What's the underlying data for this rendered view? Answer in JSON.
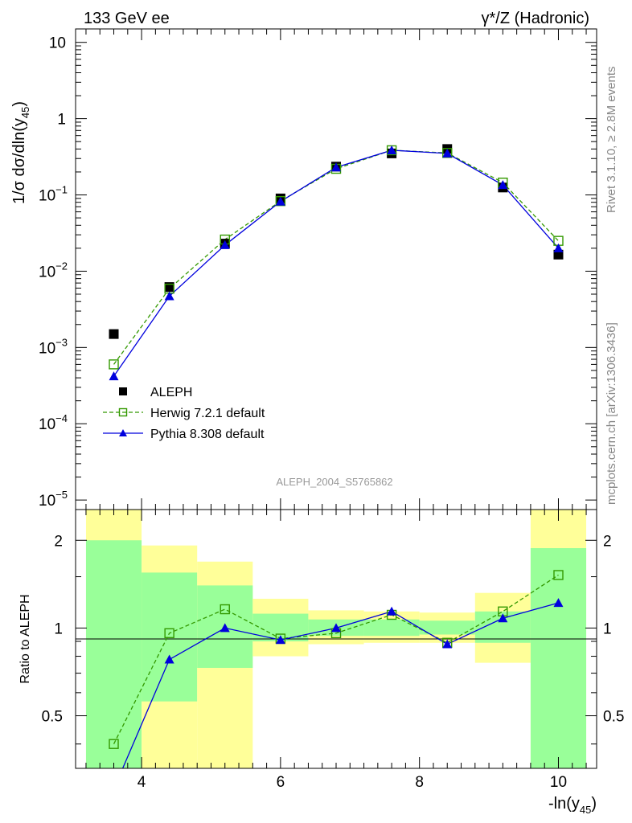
{
  "header": {
    "left": "133 GeV ee",
    "right": "γ*/Z (Hadronic)"
  },
  "side": {
    "rivet": "Rivet 3.1.10, ≥ 2.8M events",
    "mcplots": "mcplots.cern.ch [arXiv:1306.3436]"
  },
  "analysis_label": "ALEPH_2004_S5765862",
  "chart_data": [
    {
      "type": "scatter",
      "title": "133 GeV ee",
      "ylabel": "1/σ dσ/dln(y_45)",
      "xlabel": "-ln(y_45)",
      "yscale": "log",
      "ylim": [
        7.5e-06,
        15
      ],
      "xlim": [
        3.05,
        10.55
      ],
      "x_ticks": [
        "4",
        "6",
        "8",
        "10"
      ],
      "y_ticks": [
        "10⁻⁵",
        "10⁻⁴",
        "10⁻³",
        "10⁻²",
        "10⁻¹",
        "1",
        "10"
      ],
      "legend": [
        "ALEPH",
        "Herwig 7.2.1 default",
        "Pythia 8.308 default"
      ],
      "legend_position": "lower-left",
      "x": [
        3.6,
        4.4,
        5.2,
        6.0,
        6.8,
        7.6,
        8.4,
        9.2,
        10.0
      ],
      "series": [
        {
          "name": "ALEPH",
          "color": "#000000",
          "marker": "filled-square",
          "values": [
            0.0015,
            0.0062,
            0.023,
            0.09,
            0.235,
            0.35,
            0.4,
            0.125,
            0.0165
          ]
        },
        {
          "name": "Herwig 7.2.1 default",
          "color": "#339900",
          "marker": "open-square",
          "line": "dashed",
          "values": [
            0.0006,
            0.0059,
            0.026,
            0.083,
            0.22,
            0.385,
            0.355,
            0.145,
            0.025
          ]
        },
        {
          "name": "Pythia 8.308 default",
          "color": "#0000dd",
          "marker": "filled-triangle",
          "line": "solid",
          "values": [
            0.00042,
            0.0047,
            0.022,
            0.082,
            0.23,
            0.385,
            0.35,
            0.135,
            0.02
          ]
        }
      ]
    },
    {
      "type": "line",
      "ylabel": "Ratio to ALEPH",
      "xlabel": "-ln(y_45)",
      "yscale": "log",
      "ylim": [
        0.33,
        2.55
      ],
      "xlim": [
        3.05,
        10.55
      ],
      "y_ticks": [
        "0.5",
        "1",
        "2"
      ],
      "reference_line": 1,
      "bands": [
        {
          "x_range": [
            3.2,
            4.0
          ],
          "stat": [
            0.33,
            2.0
          ],
          "total": [
            0.33,
            2.55
          ]
        },
        {
          "x_range": [
            4.0,
            4.8
          ],
          "stat": [
            0.56,
            1.55
          ],
          "total": [
            0.33,
            1.92
          ]
        },
        {
          "x_range": [
            4.8,
            5.6
          ],
          "stat": [
            0.73,
            1.4
          ],
          "total": [
            0.33,
            1.69
          ]
        },
        {
          "x_range": [
            5.6,
            6.4
          ],
          "stat": [
            0.9,
            1.12
          ],
          "total": [
            0.8,
            1.26
          ]
        },
        {
          "x_range": [
            6.4,
            7.2
          ],
          "stat": [
            0.94,
            1.07
          ],
          "total": [
            0.88,
            1.15
          ]
        },
        {
          "x_range": [
            7.2,
            8.0
          ],
          "stat": [
            0.94,
            1.07
          ],
          "total": [
            0.89,
            1.14
          ]
        },
        {
          "x_range": [
            8.0,
            8.8
          ],
          "stat": [
            0.95,
            1.06
          ],
          "total": [
            0.89,
            1.13
          ]
        },
        {
          "x_range": [
            8.8,
            9.6
          ],
          "stat": [
            0.89,
            1.14
          ],
          "total": [
            0.76,
            1.32
          ]
        },
        {
          "x_range": [
            9.6,
            10.4
          ],
          "stat": [
            0.33,
            1.88
          ],
          "total": [
            0.33,
            2.55
          ]
        }
      ],
      "band_colors": {
        "stat": "#99ff99",
        "total": "#ffff99"
      },
      "x": [
        3.6,
        4.4,
        5.2,
        6.0,
        6.8,
        7.6,
        8.4,
        9.2,
        10.0
      ],
      "series": [
        {
          "name": "Herwig 7.2.1 default",
          "color": "#339900",
          "marker": "open-square",
          "line": "dashed",
          "values": [
            0.4,
            0.96,
            1.16,
            0.92,
            0.96,
            1.11,
            0.89,
            1.14,
            1.52
          ]
        },
        {
          "name": "Pythia 8.308 default",
          "color": "#0000dd",
          "marker": "filled-triangle",
          "line": "solid",
          "values": [
            0.28,
            0.78,
            1.0,
            0.91,
            1.0,
            1.14,
            0.88,
            1.08,
            1.22
          ]
        }
      ]
    }
  ]
}
